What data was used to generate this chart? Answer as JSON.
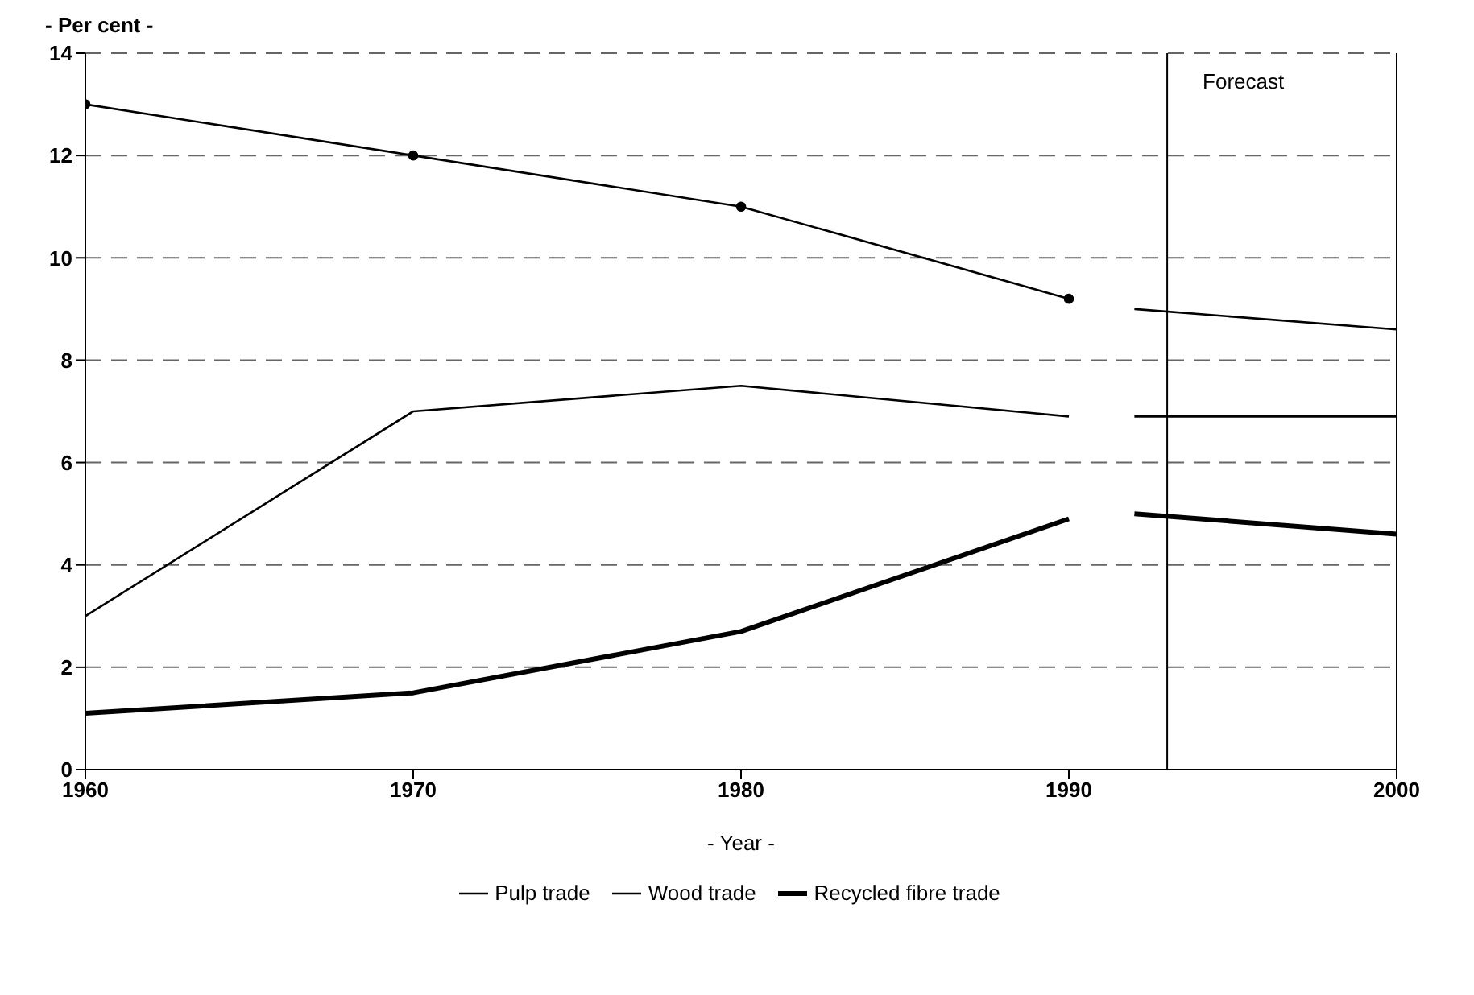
{
  "chart_data": {
    "type": "line",
    "ylabel": "- Per cent -",
    "xlabel": "- Year -",
    "x": [
      1960,
      1970,
      1980,
      1990,
      1992,
      2000
    ],
    "series": [
      {
        "name": "Pulp trade",
        "color": "#000000",
        "values": [
          13,
          12,
          11,
          9.2,
          null,
          null
        ],
        "marker": "circle"
      },
      {
        "name": "Wood trade",
        "color": "#000000",
        "values": [
          3,
          7,
          7.5,
          6.9,
          null,
          null
        ]
      },
      {
        "name": "Recycled fibre trade",
        "color": "#000000",
        "values": [
          1.1,
          1.5,
          2.7,
          4.9,
          null,
          null
        ]
      },
      {
        "color": "#000000",
        "values": [
          null,
          null,
          null,
          null,
          9.0,
          8.6
        ]
      },
      {
        "color": "#000000",
        "values": [
          null,
          null,
          null,
          null,
          6.9,
          6.9
        ]
      },
      {
        "color": "#000000",
        "values": [
          null,
          null,
          null,
          null,
          5.0,
          4.6
        ]
      }
    ],
    "xlim": [
      1960,
      2000
    ],
    "xticks": [
      1960,
      1970,
      1980,
      1990,
      2000
    ],
    "ylim": [
      0,
      14
    ],
    "yticks": [
      0,
      2,
      4,
      6,
      8,
      10,
      12,
      14
    ],
    "grid": "y",
    "legend": "bottom",
    "marker": "none",
    "line_style": "solid",
    "ref_lines": [
      {
        "axis": "x",
        "value": 1993,
        "label": "Forecast"
      }
    ]
  }
}
